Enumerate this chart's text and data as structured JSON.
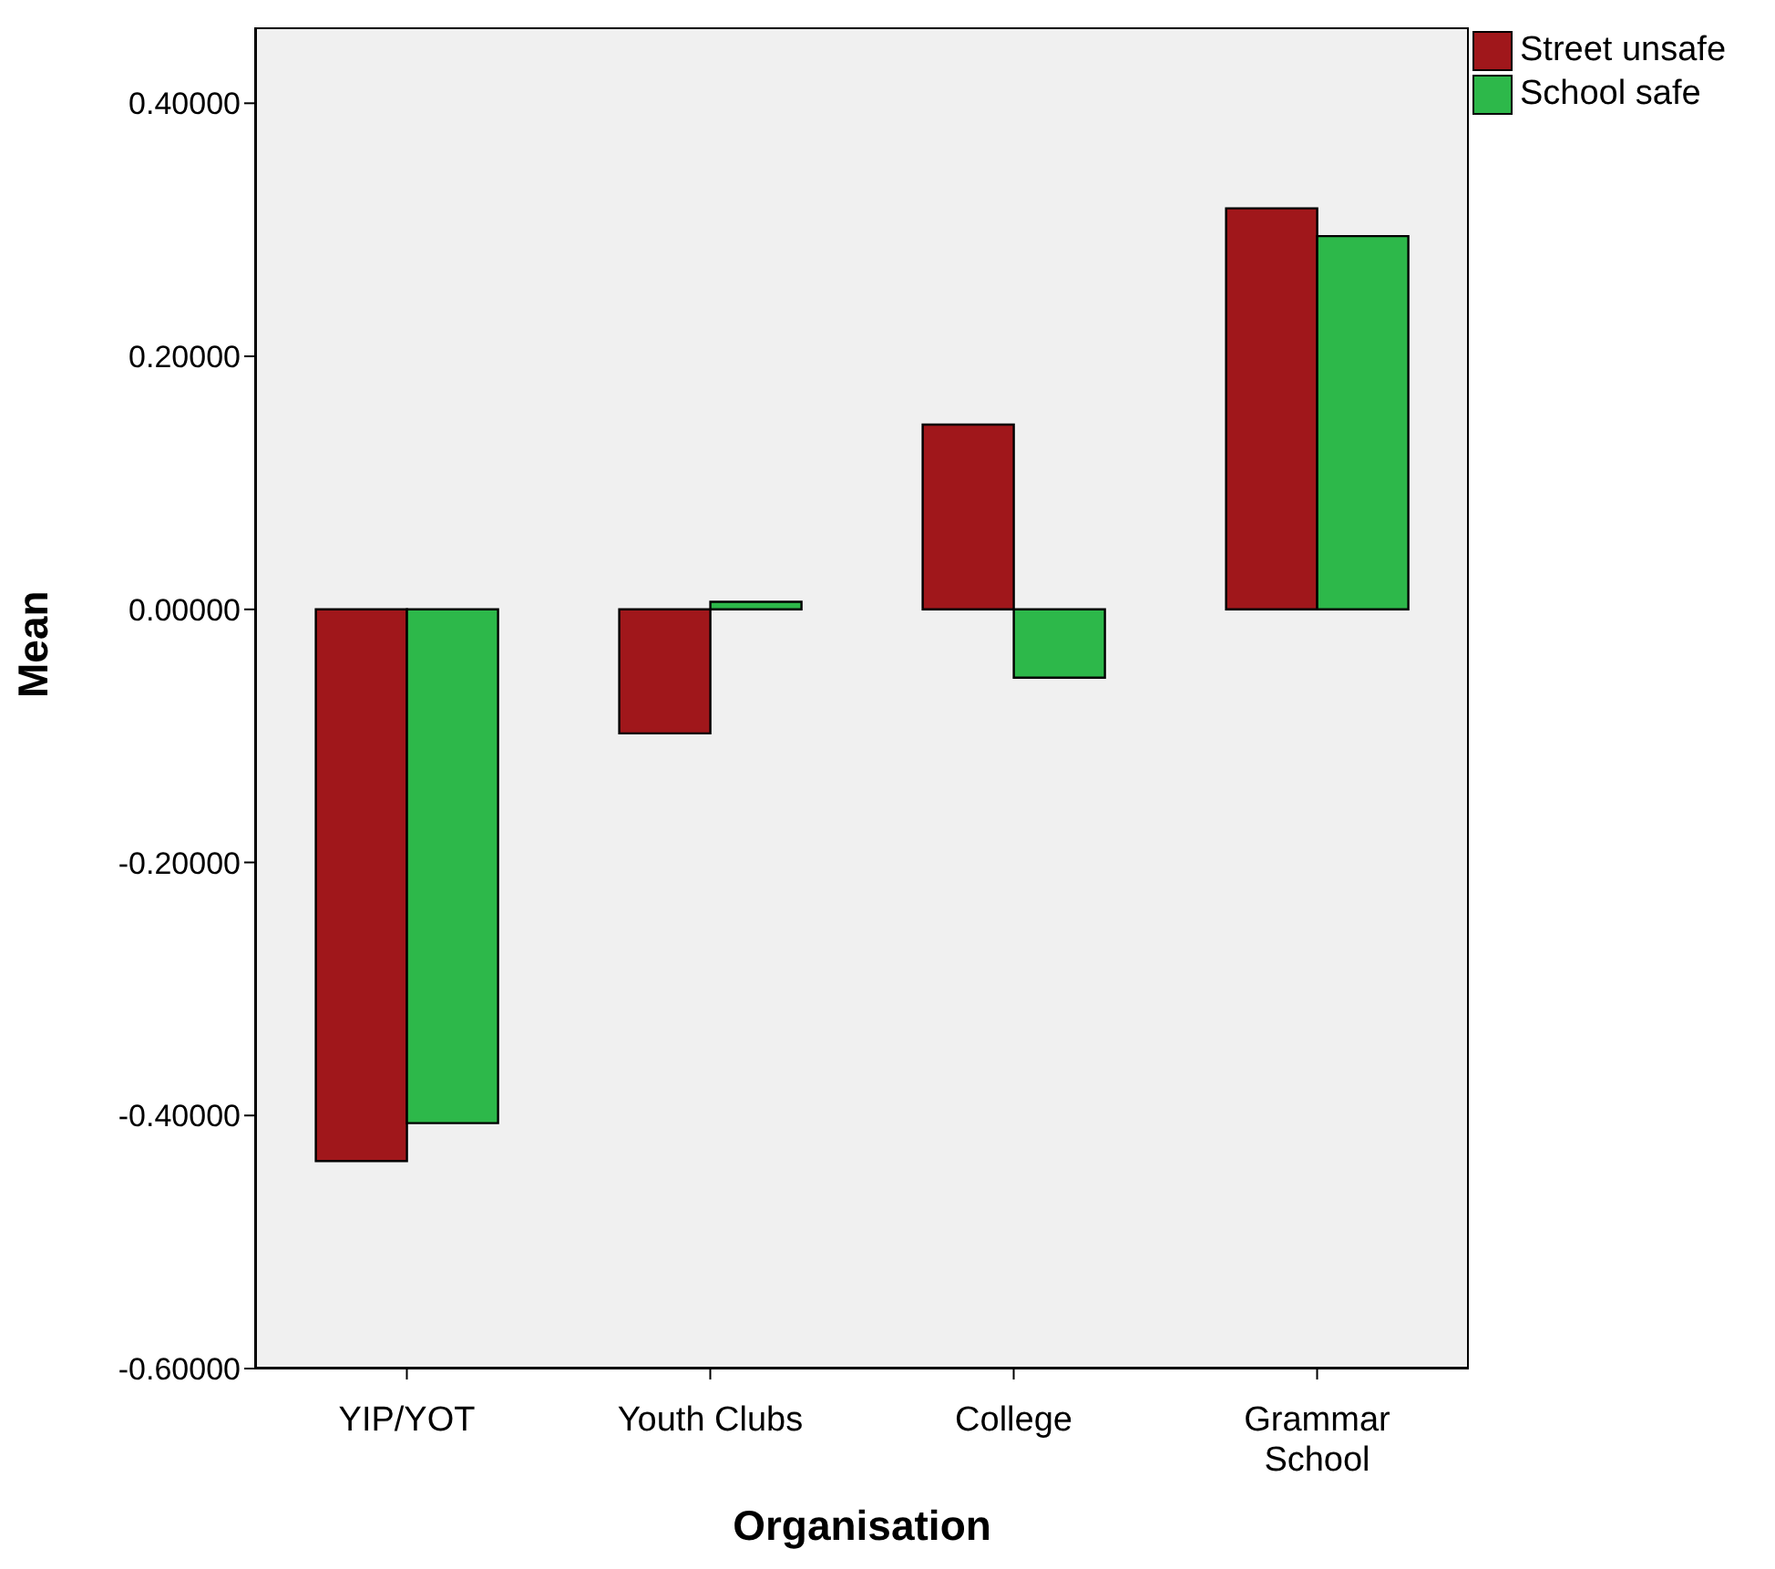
{
  "chart_data": {
    "type": "bar",
    "xlabel": "Organisation",
    "ylabel": "Mean",
    "categories": [
      "YIP/YOT",
      "Youth Clubs",
      "College",
      "Grammar School"
    ],
    "series": [
      {
        "name": "Street unsafe",
        "color": "#a0171b",
        "values": [
          -0.436,
          -0.098,
          0.146,
          0.317
        ]
      },
      {
        "name": "School safe",
        "color": "#2db84a",
        "values": [
          -0.406,
          0.006,
          -0.054,
          0.295
        ]
      }
    ],
    "ylim": [
      -0.6,
      0.46
    ],
    "yticks": [
      {
        "value": -0.6,
        "label": "-0.60000"
      },
      {
        "value": -0.4,
        "label": "-0.40000"
      },
      {
        "value": -0.2,
        "label": "-0.20000"
      },
      {
        "value": 0,
        "label": "0.00000"
      },
      {
        "value": 0.2,
        "label": "0.20000"
      },
      {
        "value": 0.4,
        "label": "0.40000"
      }
    ],
    "grid": false,
    "legend": "top right"
  }
}
